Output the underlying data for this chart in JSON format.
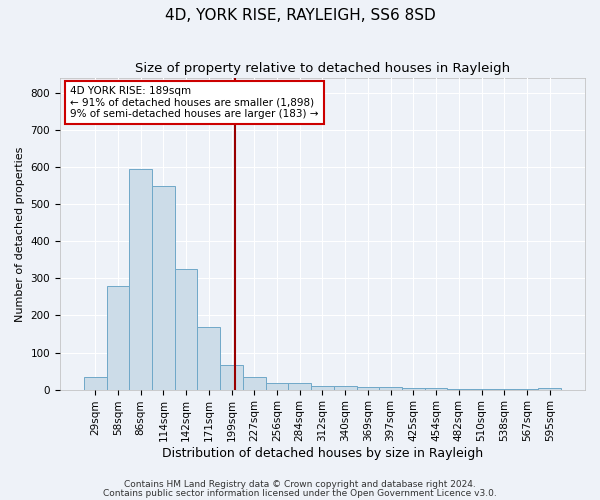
{
  "title1": "4D, YORK RISE, RAYLEIGH, SS6 8SD",
  "title2": "Size of property relative to detached houses in Rayleigh",
  "xlabel": "Distribution of detached houses by size in Rayleigh",
  "ylabel": "Number of detached properties",
  "categories": [
    "29sqm",
    "58sqm",
    "86sqm",
    "114sqm",
    "142sqm",
    "171sqm",
    "199sqm",
    "227sqm",
    "256sqm",
    "284sqm",
    "312sqm",
    "340sqm",
    "369sqm",
    "397sqm",
    "425sqm",
    "454sqm",
    "482sqm",
    "510sqm",
    "538sqm",
    "567sqm",
    "595sqm"
  ],
  "values": [
    35,
    280,
    595,
    550,
    325,
    170,
    65,
    35,
    18,
    18,
    10,
    10,
    6,
    6,
    3,
    3,
    2,
    2,
    1,
    1,
    3
  ],
  "bar_color": "#ccdce8",
  "bar_edge_color": "#6fa8c8",
  "vline_x": 6.15,
  "vline_color": "#990000",
  "annotation_text": "4D YORK RISE: 189sqm\n← 91% of detached houses are smaller (1,898)\n9% of semi-detached houses are larger (183) →",
  "annotation_box_color": "#ffffff",
  "annotation_box_edge": "#cc0000",
  "ylim": [
    0,
    840
  ],
  "yticks": [
    0,
    100,
    200,
    300,
    400,
    500,
    600,
    700,
    800
  ],
  "footer1": "Contains HM Land Registry data © Crown copyright and database right 2024.",
  "footer2": "Contains public sector information licensed under the Open Government Licence v3.0.",
  "bg_color": "#eef2f8",
  "grid_color": "#ffffff",
  "title1_fontsize": 11,
  "title2_fontsize": 9.5,
  "xlabel_fontsize": 9,
  "ylabel_fontsize": 8,
  "tick_fontsize": 7.5,
  "footer_fontsize": 6.5
}
